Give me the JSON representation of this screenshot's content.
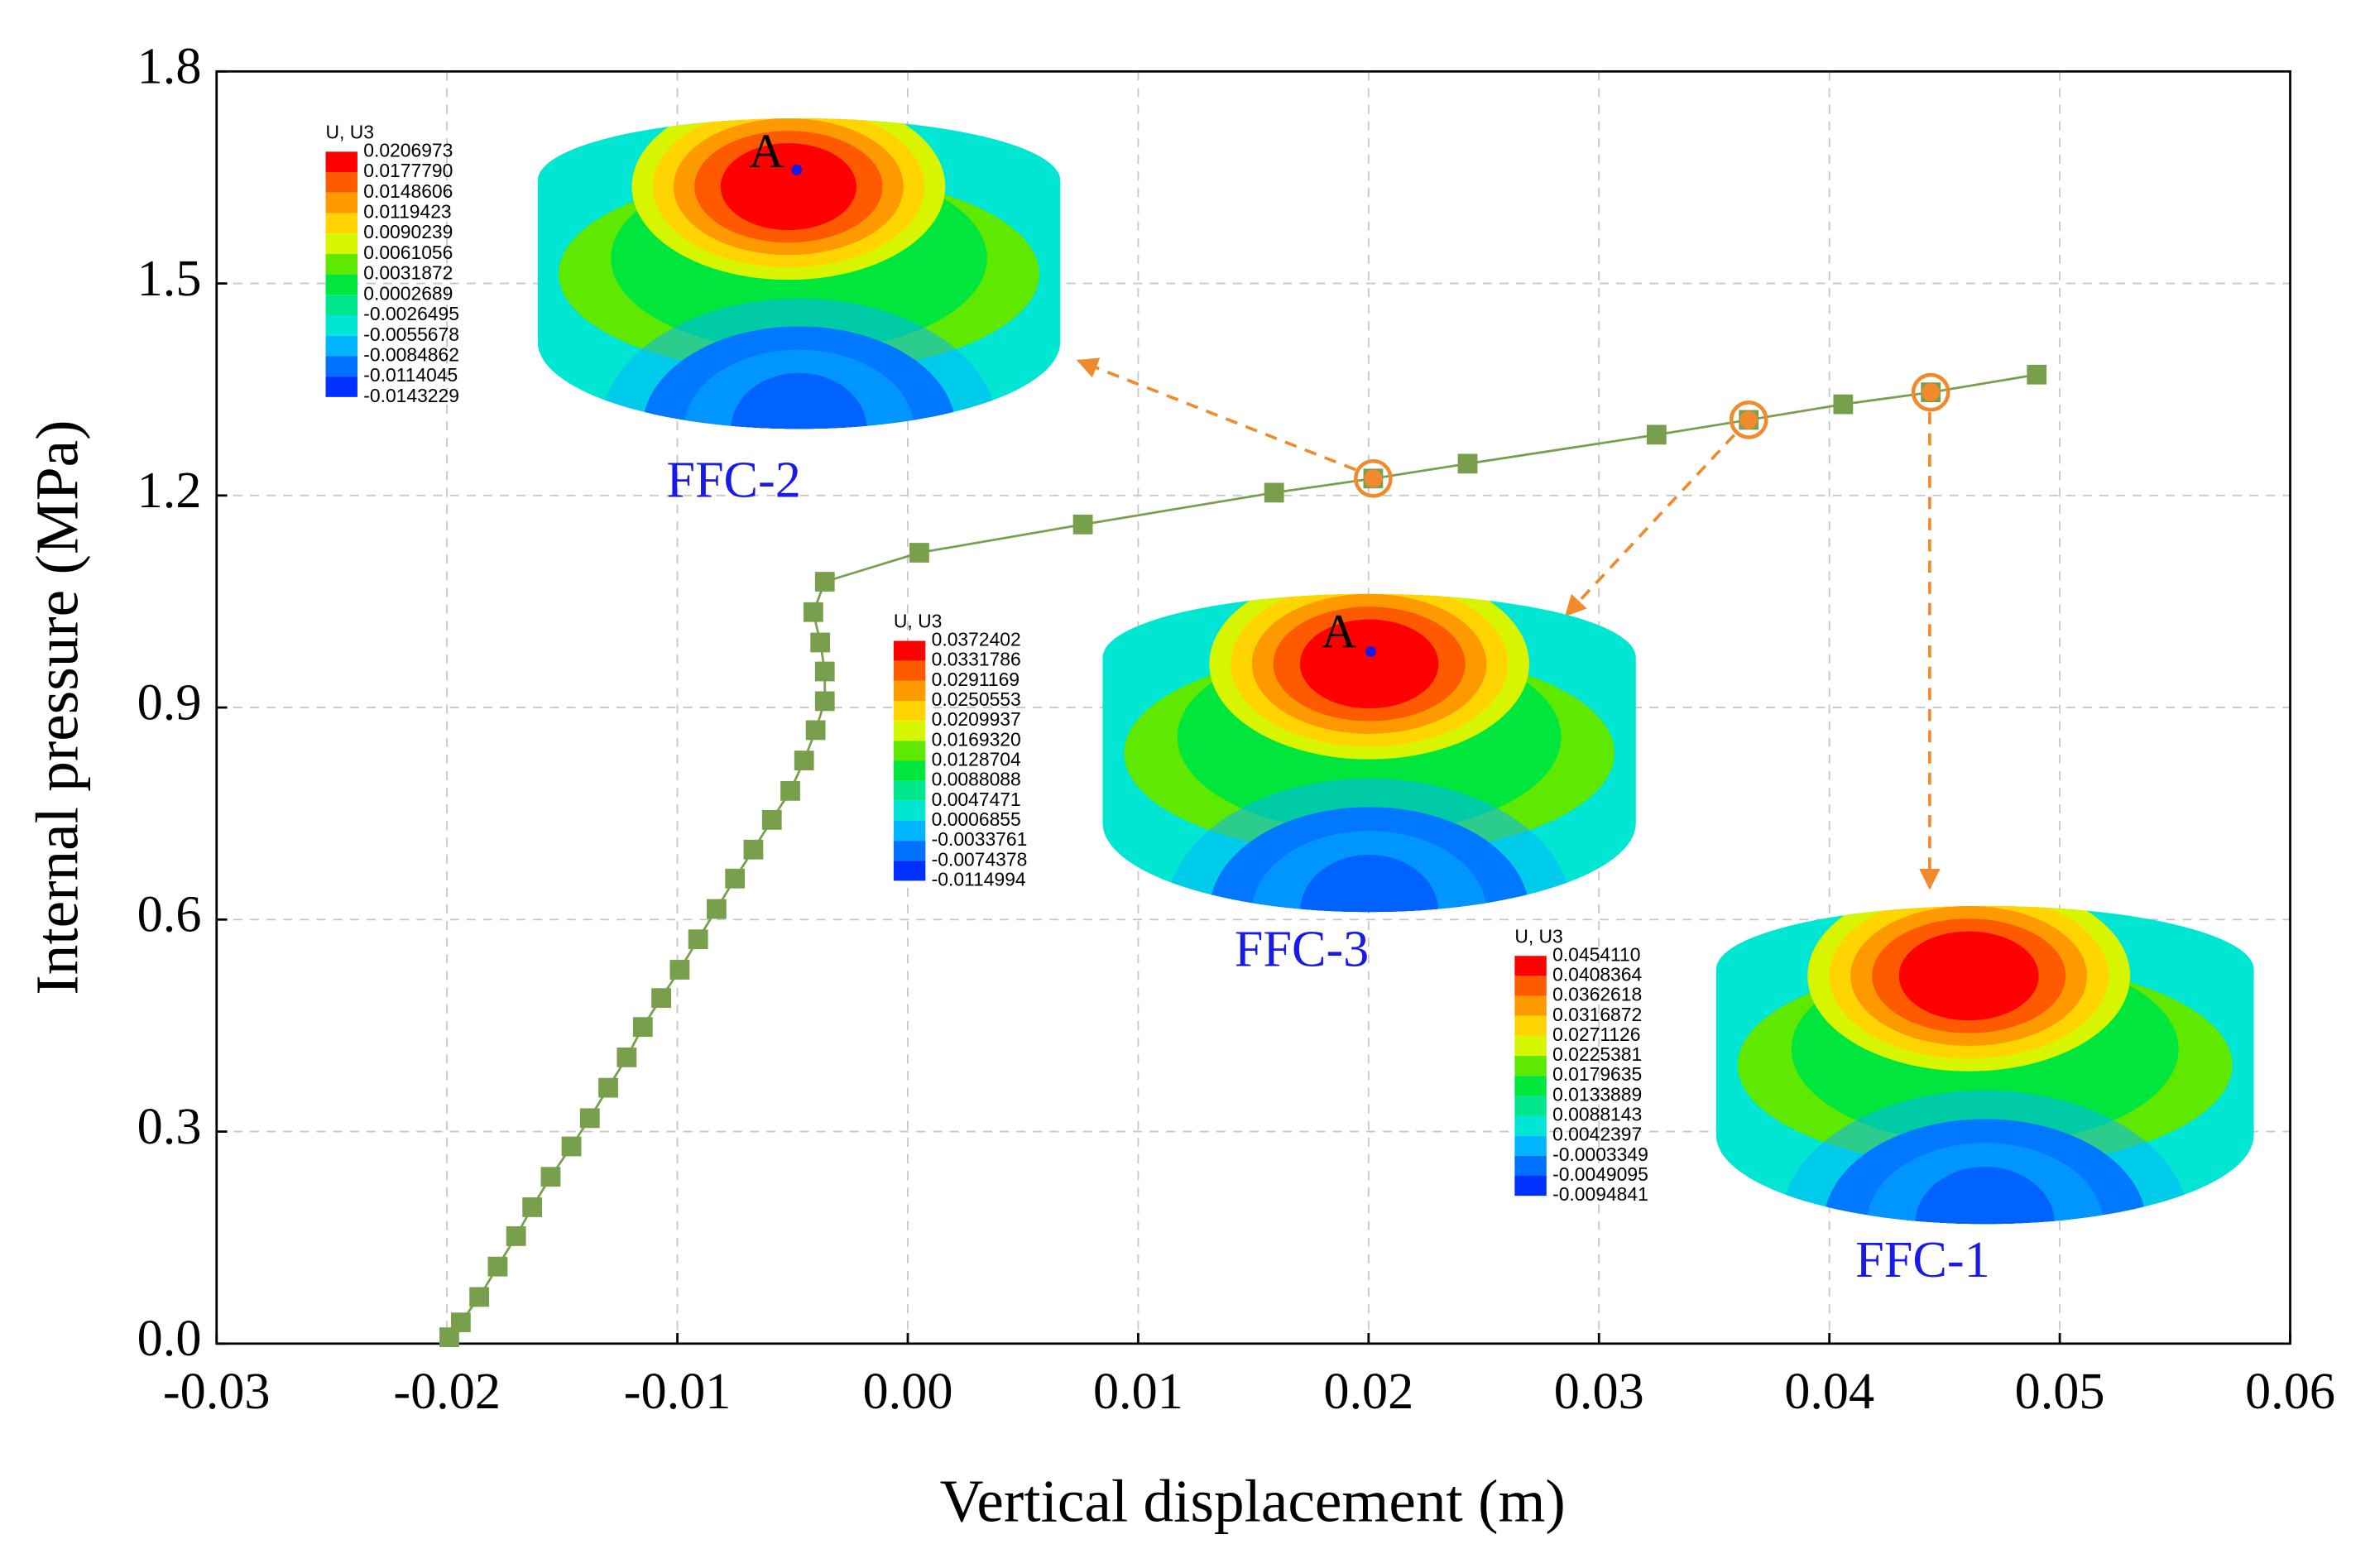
{
  "chart_data": {
    "type": "line",
    "xlabel": "Vertical displacement (m)",
    "ylabel": "Internal pressure (MPa)",
    "xlim": [
      -0.03,
      0.06
    ],
    "ylim": [
      0,
      1.8
    ],
    "xticks": [
      -0.03,
      -0.02,
      -0.01,
      {
        "value": 0,
        "label": "0.00"
      },
      0.01,
      0.02,
      0.03,
      0.04,
      0.05,
      0.06
    ],
    "yticks": [
      {
        "value": 0,
        "label": "0.0"
      },
      0.3,
      0.6,
      0.9,
      1.2,
      1.5,
      1.8
    ],
    "grid": true,
    "series": [
      {
        "color": "#78a04c",
        "marker": "square",
        "x": [
          -0.0199,
          -0.0194,
          -0.0186,
          -0.0178,
          -0.017,
          -0.0163,
          -0.0155,
          -0.0146,
          -0.0138,
          -0.013,
          -0.0122,
          -0.0115,
          -0.0107,
          -0.0099,
          -0.0091,
          -0.0083,
          -0.0075,
          -0.0067,
          -0.0059,
          -0.0051,
          -0.0045,
          -0.004,
          -0.0036,
          -0.0036,
          -0.0038,
          -0.0041,
          -0.0036,
          0.0005,
          0.0076,
          0.0159,
          0.0202,
          0.0243,
          0.0325,
          0.0365,
          0.0406,
          0.0444,
          0.049
        ],
        "values": [
          0.009,
          0.03,
          0.066,
          0.109,
          0.152,
          0.193,
          0.236,
          0.279,
          0.319,
          0.362,
          0.405,
          0.448,
          0.489,
          0.529,
          0.572,
          0.615,
          0.658,
          0.699,
          0.741,
          0.782,
          0.825,
          0.868,
          0.909,
          0.951,
          0.992,
          1.035,
          1.078,
          1.119,
          1.159,
          1.204,
          1.224,
          1.245,
          1.286,
          1.307,
          1.329,
          1.346,
          1.371
        ]
      }
    ],
    "insets": [
      {
        "label": "FFC-2",
        "x": 0.0202,
        "y": 1.224,
        "legend_title": "U, U3",
        "point_label": "A",
        "legend_values": [
          "0.0206973",
          "0.0177790",
          "0.0148606",
          "0.0119423",
          "0.0090239",
          "0.0061056",
          "0.0031872",
          "0.0002689",
          "-0.0026495",
          "-0.0055678",
          "-0.0084862",
          "-0.0114045",
          "-0.0143229"
        ]
      },
      {
        "label": "FFC-3",
        "x": 0.0365,
        "y": 1.307,
        "legend_title": "U, U3",
        "point_label": "A",
        "legend_values": [
          "0.0372402",
          "0.0331786",
          "0.0291169",
          "0.0250553",
          "0.0209937",
          "0.0169320",
          "0.0128704",
          "0.0088088",
          "0.0047471",
          "0.0006855",
          "-0.0033761",
          "-0.0074378",
          "-0.0114994"
        ]
      },
      {
        "label": "FFC-1",
        "x": 0.0444,
        "y": 1.346,
        "legend_title": "U, U3",
        "legend_values": [
          "0.0454110",
          "0.0408364",
          "0.0362618",
          "0.0316872",
          "0.0271126",
          "0.0225381",
          "0.0179635",
          "0.0133889",
          "0.0088143",
          "0.0042397",
          "-0.0003349",
          "-0.0049095",
          "-0.0094841"
        ]
      }
    ]
  }
}
